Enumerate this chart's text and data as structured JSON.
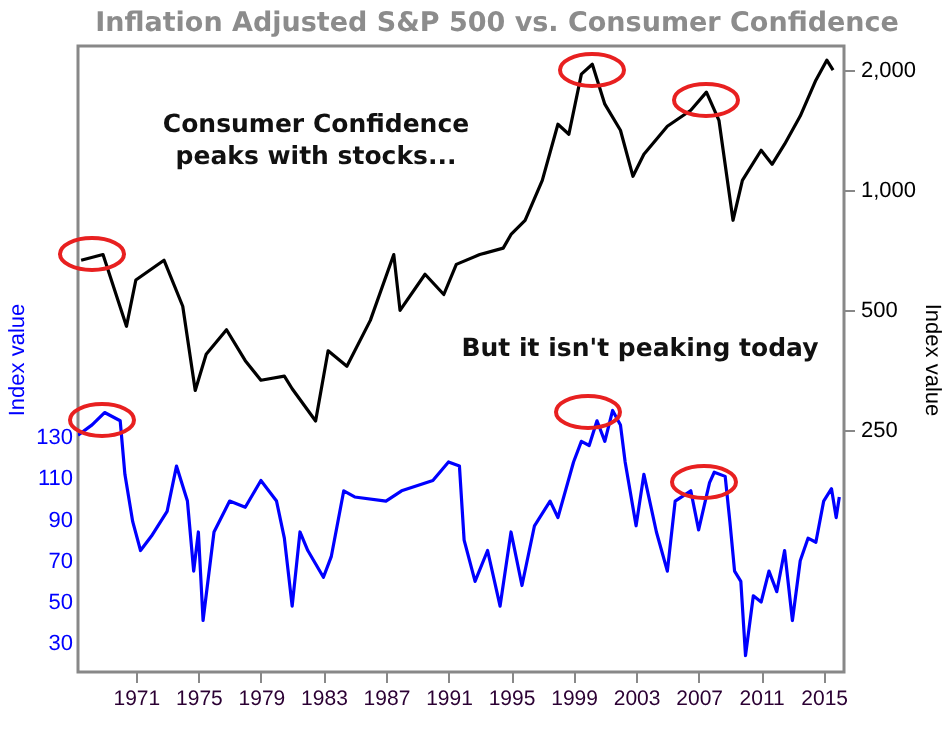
{
  "chart_data": {
    "type": "line",
    "title": "Inflation Adjusted S&P 500 vs. Consumer Confidence",
    "ylabel": "Index value",
    "y2label": "Index value",
    "annotations": [
      "Consumer Confidence peaks with stocks...",
      "But it isn't peaking today"
    ],
    "xlim": [
      1967.3,
      2016.3
    ],
    "xticks": [
      1971,
      1975,
      1979,
      1983,
      1987,
      1991,
      1995,
      1999,
      2003,
      2007,
      2011,
      2015
    ],
    "ylim": [
      16,
      320
    ],
    "yticks": [
      30,
      50,
      70,
      90,
      110,
      130
    ],
    "y2lim": [
      62,
      2300
    ],
    "y2ticks": [
      250,
      500,
      {
        "value": 1000,
        "label": "1,000"
      },
      {
        "value": 2000,
        "label": "2,000"
      }
    ],
    "log": "y2",
    "grid": false,
    "series": [
      {
        "color": "#0000ff",
        "x": [
          1967.3,
          1968.2,
          1969,
          1970,
          1970.3,
          1970.8,
          1971.3,
          1972,
          1973,
          1973.6,
          1974.3,
          1974.7,
          1975,
          1975.3,
          1976,
          1977,
          1978,
          1979,
          1980,
          1980.5,
          1981,
          1981.5,
          1982,
          1983,
          1983.5,
          1984.3,
          1985,
          1987,
          1988,
          1990,
          1991,
          1991.7,
          1992,
          1992.7,
          1993.5,
          1994.3,
          1995,
          1995.7,
          1996.5,
          1997.5,
          1998,
          1999,
          1999.5,
          2000,
          2000.5,
          2001,
          2001.5,
          2002,
          2002.3,
          2003,
          2003.5,
          2004.3,
          2005,
          2005.5,
          2006.5,
          2007,
          2007.7,
          2008,
          2008.7,
          2009,
          2009.3,
          2009.7,
          2010,
          2010.5,
          2011,
          2011.5,
          2012,
          2012.5,
          2013,
          2013.5,
          2014,
          2014.5,
          2015,
          2015.5,
          2015.8,
          2016
        ],
        "values": [
          131,
          136,
          142,
          138,
          112,
          89,
          75,
          82,
          94,
          116,
          99,
          65,
          84,
          41,
          84,
          99,
          96,
          109,
          99,
          81,
          48,
          84,
          75,
          62,
          72,
          104,
          101,
          99,
          104,
          109,
          118,
          116,
          80,
          60,
          75,
          48,
          84,
          58,
          87,
          99,
          91,
          118,
          128,
          126,
          138,
          128,
          143,
          136,
          118,
          87,
          112,
          84,
          65,
          99,
          104,
          85,
          108,
          113,
          111,
          89,
          65,
          60,
          24,
          53,
          50,
          65,
          55,
          75,
          41,
          70,
          81,
          79,
          99,
          105,
          91,
          101
        ]
      },
      {
        "color": "#000000",
        "axis": "y2",
        "x": [
          1967.5,
          1968.9,
          1970.4,
          1971,
          1972.8,
          1974,
          1974.8,
          1975.5,
          1976.8,
          1978,
          1979,
          1980.5,
          1981,
          1982.5,
          1983.3,
          1984.5,
          1986,
          1987.5,
          1987.9,
          1989.5,
          1990.7,
          1991.5,
          1993,
          1994.5,
          1995,
          1995.9,
          1997,
          1998,
          1998.7,
          1999.5,
          2000.2,
          2001,
          2002,
          2002.8,
          2003.5,
          2005,
          2006.5,
          2007.5,
          2008.3,
          2009.2,
          2009.8,
          2011,
          2011.7,
          2012.5,
          2013.5,
          2014.5,
          2015.2,
          2015.6
        ],
        "values": [
          668,
          690,
          456,
          596,
          668,
          512,
          315,
          388,
          447,
          374,
          334,
          342,
          318,
          264,
          396,
          362,
          472,
          690,
          500,
          616,
          548,
          652,
          690,
          716,
          775,
          841,
          1059,
          1464,
          1382,
          1955,
          2070,
          1644,
          1414,
          1084,
          1231,
          1447,
          1587,
          1762,
          1498,
          841,
          1059,
          1260,
          1162,
          1305,
          1535,
          1888,
          2119,
          2000
        ]
      }
    ]
  }
}
